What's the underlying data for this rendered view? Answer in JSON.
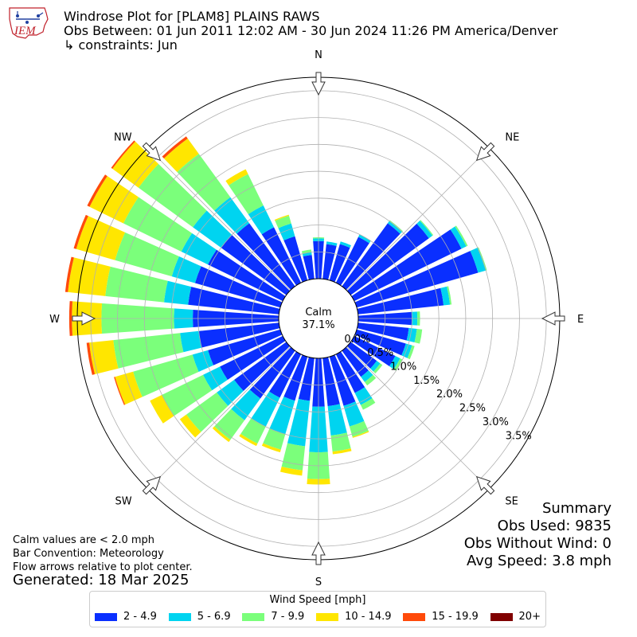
{
  "header": {
    "title": "Windrose Plot for [PLAM8] PLAINS RAWS",
    "subtitle": "Obs Between: 01 Jun 2011 12:02 AM - 30 Jun 2024 11:26 PM America/Denver",
    "constraints": "↳ constraints: Jun"
  },
  "logo": {
    "text": "IEM"
  },
  "notes": {
    "calm_note": "Calm values are < 2.0 mph",
    "bar_convention": "Bar Convention: Meteorology",
    "flow_arrows": "Flow arrows relative to plot center.",
    "generated": "Generated: 18 Mar 2025"
  },
  "summary": {
    "heading": "Summary",
    "obs_used": "Obs Used: 9835",
    "obs_without_wind": "Obs Without Wind: 0",
    "avg_speed": "Avg Speed: 3.8 mph"
  },
  "chart_data": {
    "type": "windrose",
    "calm_label": "Calm",
    "calm_value": "37.1%",
    "compass_labels": [
      "N",
      "NE",
      "E",
      "SE",
      "S",
      "SW",
      "W",
      "NW"
    ],
    "radial_ticks": [
      "0.0%",
      "0.5%",
      "1.0%",
      "1.5%",
      "2.0%",
      "2.5%",
      "3.0%",
      "3.5%"
    ],
    "radial_max": 3.75,
    "direction_count": 36,
    "direction_start_deg": 0,
    "direction_step_deg": 10,
    "speed_bins": [
      {
        "label": "2 - 4.9",
        "color": "#0a2fff"
      },
      {
        "label": "5 - 6.9",
        "color": "#00d4f0"
      },
      {
        "label": "7 - 9.9",
        "color": "#7bff7b"
      },
      {
        "label": "10 - 14.9",
        "color": "#ffe600"
      },
      {
        "label": "15 - 19.9",
        "color": "#ff4a0a"
      },
      {
        "label": "20+",
        "color": "#800000"
      }
    ],
    "legend_title": "Wind Speed [mph]",
    "values": [
      [
        0.7,
        0.05,
        0.02,
        0,
        0,
        0
      ],
      [
        0.65,
        0.05,
        0,
        0,
        0,
        0
      ],
      [
        0.7,
        0.05,
        0,
        0,
        0,
        0
      ],
      [
        0.95,
        0.05,
        0,
        0,
        0,
        0
      ],
      [
        1.45,
        0.05,
        0.02,
        0,
        0,
        0
      ],
      [
        1.8,
        0.08,
        0.02,
        0,
        0,
        0
      ],
      [
        2.22,
        0.1,
        0.03,
        0,
        0,
        0
      ],
      [
        2.35,
        0.15,
        0.02,
        0,
        0,
        0
      ],
      [
        1.6,
        0.12,
        0.03,
        0,
        0,
        0
      ],
      [
        1.0,
        0.1,
        0.05,
        0,
        0,
        0
      ],
      [
        0.95,
        0.15,
        0.1,
        0,
        0,
        0
      ],
      [
        0.95,
        0.12,
        0.05,
        0,
        0,
        0
      ],
      [
        0.85,
        0.1,
        0.05,
        0,
        0,
        0
      ],
      [
        0.6,
        0.08,
        0.05,
        0,
        0,
        0
      ],
      [
        0.6,
        0.12,
        0.08,
        0,
        0,
        0
      ],
      [
        0.8,
        0.25,
        0.1,
        0,
        0,
        0
      ],
      [
        0.95,
        0.4,
        0.2,
        0.02,
        0,
        0
      ],
      [
        0.9,
        0.55,
        0.3,
        0.05,
        0,
        0
      ],
      [
        0.9,
        0.85,
        0.5,
        0.1,
        0,
        0
      ],
      [
        0.8,
        0.85,
        0.45,
        0.1,
        0,
        0
      ],
      [
        0.85,
        0.65,
        0.3,
        0.05,
        0,
        0
      ],
      [
        0.9,
        0.6,
        0.35,
        0.05,
        0,
        0
      ],
      [
        1.1,
        0.5,
        0.45,
        0.05,
        0,
        0
      ],
      [
        1.2,
        0.4,
        0.7,
        0.15,
        0,
        0
      ],
      [
        1.3,
        0.35,
        0.85,
        0.25,
        0,
        0
      ],
      [
        1.4,
        0.3,
        1.15,
        0.35,
        0.02,
        0
      ],
      [
        1.5,
        0.35,
        1.25,
        0.45,
        0.05,
        0
      ],
      [
        1.6,
        0.35,
        1.35,
        0.55,
        0.05,
        0
      ],
      [
        1.7,
        0.45,
        1.1,
        0.7,
        0.05,
        0
      ],
      [
        1.65,
        0.45,
        1.1,
        0.75,
        0.05,
        0
      ],
      [
        1.55,
        0.55,
        1.2,
        0.7,
        0.05,
        0
      ],
      [
        1.5,
        0.65,
        1.25,
        0.6,
        0.03,
        0
      ],
      [
        1.45,
        0.6,
        1.0,
        0.35,
        0.05,
        0
      ],
      [
        1.15,
        0.45,
        0.65,
        0.1,
        0,
        0
      ],
      [
        0.85,
        0.25,
        0.15,
        0.02,
        0,
        0
      ],
      [
        0.45,
        0.05,
        0.05,
        0,
        0,
        0
      ]
    ]
  }
}
